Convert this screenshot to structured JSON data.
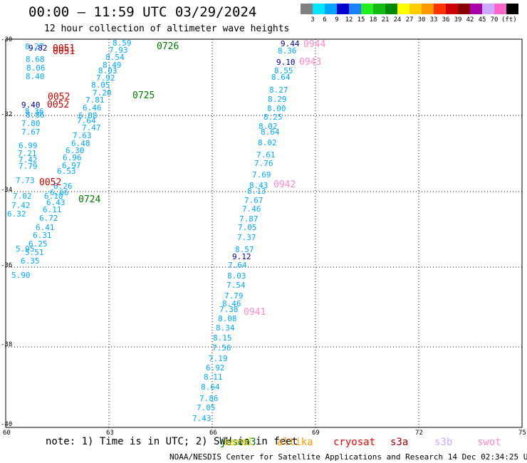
{
  "title": "00:00 — 11:59 UTC 03/29/2024",
  "subtitle": "12 hour collection of altimeter wave heights",
  "legend": {
    "colors": [
      "#808080",
      "#00e5ff",
      "#00a5ff",
      "#0000cc",
      "#1e7fff",
      "#22ee22",
      "#11bb11",
      "#008800",
      "#ffff00",
      "#ffcc00",
      "#ff9900",
      "#ff3300",
      "#cc0000",
      "#880000",
      "#aa00aa",
      "#ccaaff",
      "#ff66cc",
      "#000000"
    ],
    "labels": [
      "3",
      "6",
      "9",
      "12",
      "15",
      "18",
      "21",
      "24",
      "27",
      "30",
      "33",
      "36",
      "39",
      "42",
      "45",
      "70"
    ],
    "unit": "(ft)"
  },
  "lat_labels": [
    "-30",
    "-32",
    "-34",
    "-36",
    "-38",
    "-40"
  ],
  "lon_labels": [
    "60",
    "63",
    "66",
    "69",
    "72",
    "75"
  ],
  "tracks": [
    {
      "color": "#00aaff",
      "values": [
        "5.90",
        "6.35",
        "5.51",
        "5.95",
        "6.25",
        "6.31",
        "6.41",
        "6.72",
        "6.11",
        "6.43",
        "6.10",
        "6.66",
        "6.26",
        "6.53",
        "6.97",
        "6.96",
        "6.30",
        "6.48",
        "7.63",
        "7.47",
        "7.64",
        "6.88",
        "6.46",
        "7.81",
        "7.20",
        "8.05",
        "7.92",
        "8.03",
        "8.49",
        "8.54",
        "7.93",
        "8.59"
      ]
    },
    {
      "color": "#00aaff",
      "values": [
        "6.32",
        "7.42",
        "7.02",
        "7.73",
        "7.79",
        "7.42",
        "7.21",
        "6.99",
        "7.67",
        "7.80",
        "8.86",
        "8.36",
        "8.40",
        "8.06",
        "8.68",
        "8.27"
      ]
    },
    {
      "color": "#00aaff",
      "values": [
        "7.43",
        "7.05",
        "7.86",
        "8.64",
        "8.11",
        "6.92",
        "7.19",
        "7.56",
        "8.15",
        "8.34",
        "8.08",
        "7.38",
        "8.46",
        "7.79",
        "7.54",
        "8.03",
        "7.64",
        "8.57",
        "7.37",
        "7.05",
        "7.87",
        "7.46",
        "7.67",
        "8.13",
        "8.43",
        "7.69",
        "7.76",
        "7.61",
        "8.02",
        "8.64",
        "8.02",
        "8.25",
        "8.00",
        "8.29",
        "8.27",
        "8.64",
        "8.55",
        "8.36"
      ]
    },
    {
      "color": "#000099",
      "values": [
        "9.40",
        "9.12",
        "9.10",
        "9.44",
        "9.82"
      ]
    },
    {
      "color": "#cc0000",
      "values": [
        "0051",
        "0051",
        "0052",
        "0052",
        "0052"
      ]
    },
    {
      "color": "#007700",
      "values": [
        "0726",
        "0725",
        "0724"
      ]
    },
    {
      "color": "#ff88cc",
      "values": [
        "0944",
        "0943",
        "0942",
        "0941"
      ]
    }
  ],
  "note": "note: 1) Time is in UTC; 2) SWH is in feet",
  "missions": [
    {
      "name": "jason3",
      "color": "#007700"
    },
    {
      "name": "saral",
      "color": "#ffd700"
    },
    {
      "name": "altika",
      "color": "#ff9900"
    },
    {
      "name": "cryosat",
      "color": "#ee0000"
    },
    {
      "name": "s3a",
      "color": "#990000"
    },
    {
      "name": "s3b",
      "color": "#ccaaff"
    },
    {
      "name": "swot",
      "color": "#ff88cc"
    }
  ],
  "footer": "NOAA/NESDIS Center for Satellite Applications and Research   14 Dec 02:34:25 UTC 2024"
}
